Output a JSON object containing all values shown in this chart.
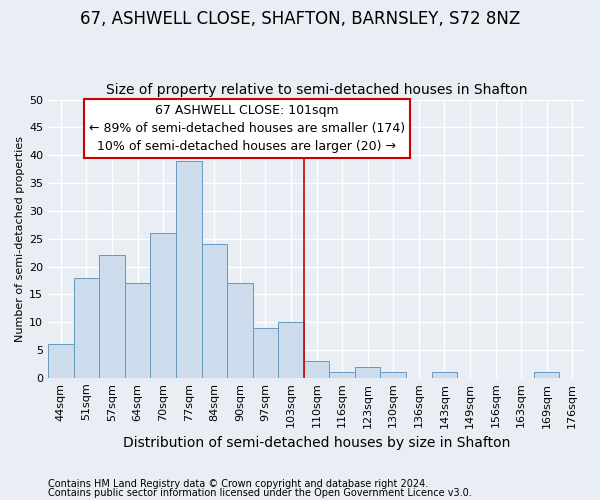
{
  "title": "67, ASHWELL CLOSE, SHAFTON, BARNSLEY, S72 8NZ",
  "subtitle": "Size of property relative to semi-detached houses in Shafton",
  "xlabel": "Distribution of semi-detached houses by size in Shafton",
  "ylabel": "Number of semi-detached properties",
  "footnote1": "Contains HM Land Registry data © Crown copyright and database right 2024.",
  "footnote2": "Contains public sector information licensed under the Open Government Licence v3.0.",
  "categories": [
    "44sqm",
    "51sqm",
    "57sqm",
    "64sqm",
    "70sqm",
    "77sqm",
    "84sqm",
    "90sqm",
    "97sqm",
    "103sqm",
    "110sqm",
    "116sqm",
    "123sqm",
    "130sqm",
    "136sqm",
    "143sqm",
    "149sqm",
    "156sqm",
    "163sqm",
    "169sqm",
    "176sqm"
  ],
  "values": [
    6,
    18,
    22,
    17,
    26,
    39,
    24,
    17,
    9,
    10,
    3,
    1,
    2,
    1,
    0,
    1,
    0,
    0,
    0,
    1,
    0
  ],
  "bar_color": "#ccdcec",
  "bar_edge_color": "#6699bb",
  "vline_x": 9.5,
  "vline_color": "#cc0000",
  "annotation_text": "67 ASHWELL CLOSE: 101sqm\n← 89% of semi-detached houses are smaller (174)\n10% of semi-detached houses are larger (20) →",
  "annotation_box_color": "#ffffff",
  "annotation_box_edge": "#cc0000",
  "ylim": [
    0,
    50
  ],
  "yticks": [
    0,
    5,
    10,
    15,
    20,
    25,
    30,
    35,
    40,
    45,
    50
  ],
  "background_color": "#e8eef4",
  "grid_color": "#ffffff",
  "title_fontsize": 12,
  "subtitle_fontsize": 10,
  "annotation_fontsize": 9,
  "tick_fontsize": 8,
  "ylabel_fontsize": 8,
  "xlabel_fontsize": 10
}
